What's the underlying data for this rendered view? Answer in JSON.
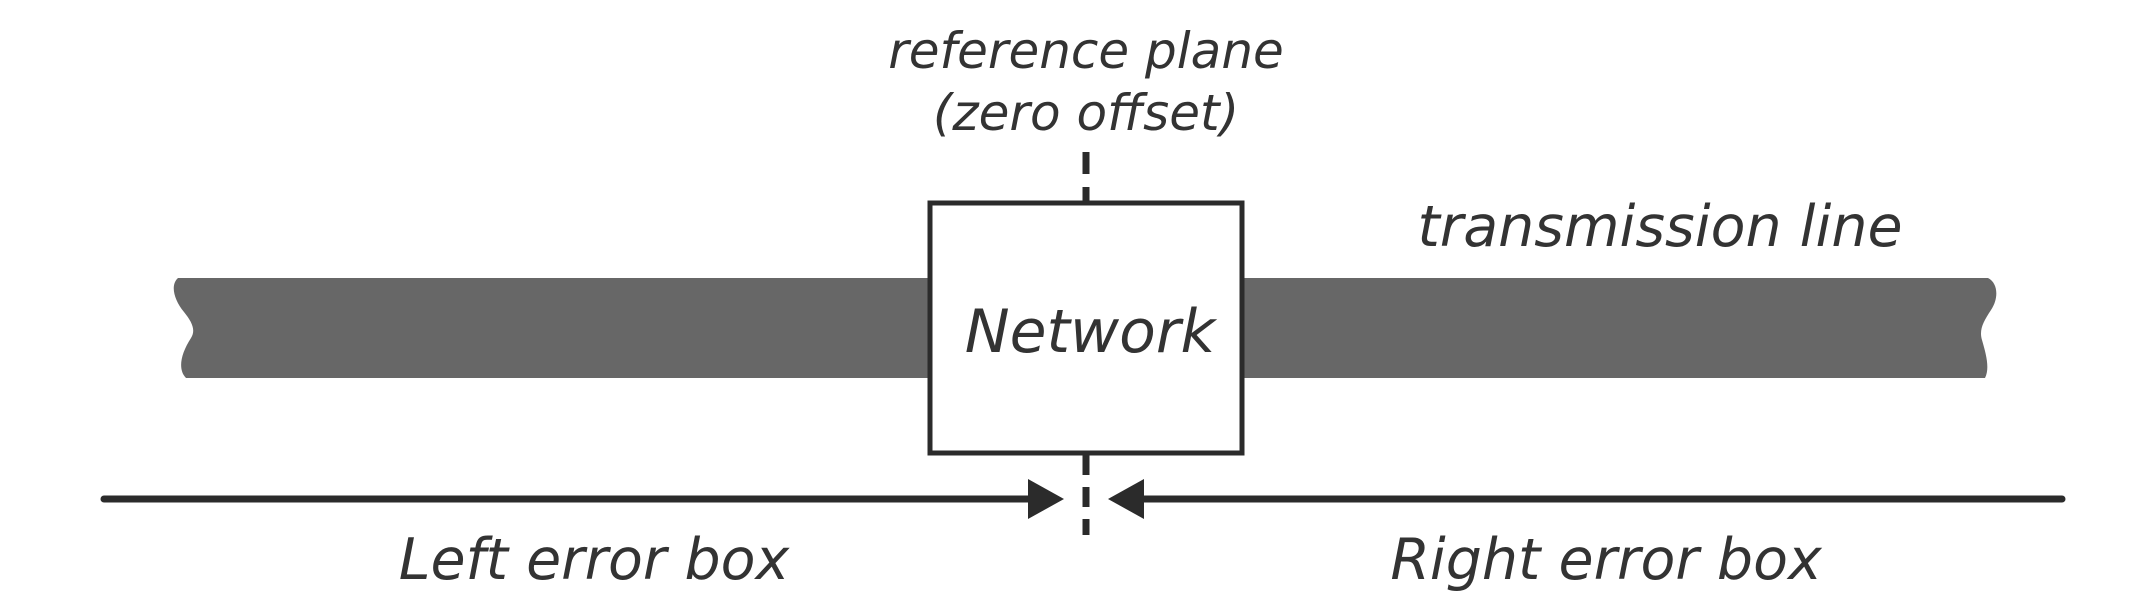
{
  "colors": {
    "line_fill": "#676767",
    "stroke": "#2b2b2b",
    "text": "#333333",
    "network_fill": "#ffffff",
    "background": "#ffffff"
  },
  "labels": {
    "reference_plane_line1": "reference plane",
    "reference_plane_line2": "(zero offset)",
    "transmission_line": "transmission line",
    "network": "Network",
    "left_error_box": "Left error box",
    "right_error_box": "Right error box"
  }
}
